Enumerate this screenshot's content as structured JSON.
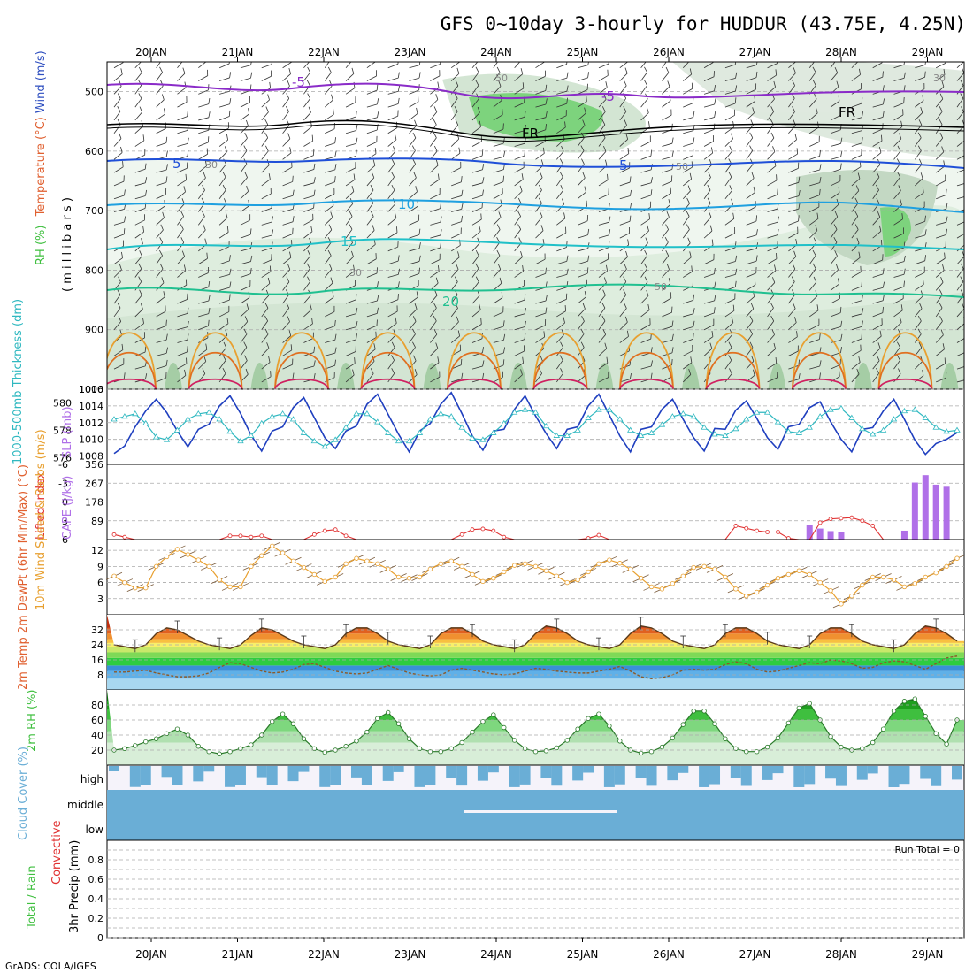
{
  "title": "GFS 0~10day 3-hourly for HUDDUR (43.75E, 4.25N)",
  "credit": "GrADS: COLA/IGES",
  "run_total": "Run Total = 0",
  "dates": [
    "20JAN",
    "21JAN",
    "22JAN",
    "23JAN",
    "24JAN",
    "25JAN",
    "26JAN",
    "27JAN",
    "28JAN",
    "29JAN"
  ],
  "colors": {
    "temp_contour": "#7030a0",
    "freezing": "#000000",
    "rh_green": "#3fbf3f",
    "slp": "#1f3fbf",
    "thickness": "#2fb8c0",
    "lifted_index": "#e03030",
    "cape": "#b070e8",
    "wind_speed": "#e8a030",
    "cloud": "#6aaed6",
    "dewpoint": "#8b5a2b"
  },
  "chart_data": [
    {
      "type": "heatmap",
      "panel": "upper-air",
      "ylabel_parts": [
        "RH (%)",
        "Temperature (°C)",
        "Wind (m/s)"
      ],
      "ylabel2": "( m i l l i b a r s )",
      "yticks": [
        500,
        600,
        700,
        800,
        900,
        1000
      ],
      "ylim": [
        1000,
        450
      ],
      "contours": [
        {
          "label": "-5",
          "pressure": 500
        },
        {
          "label": "FR",
          "pressure": 565
        },
        {
          "label": "5",
          "pressure": 620
        },
        {
          "label": "10",
          "pressure": 690
        },
        {
          "label": "15",
          "pressure": 765
        },
        {
          "label": "20",
          "pressure": 830
        }
      ],
      "rh_labels": [
        "30",
        "50"
      ]
    },
    {
      "type": "line",
      "panel": "thickness-slp",
      "ylabel_left": "1000-500mb Thickness (dm)",
      "ylabel_right": "SLP (mb)",
      "yticks_left": [
        576,
        578,
        580
      ],
      "yticks_right": [
        1008,
        1010,
        1012,
        1014,
        1016
      ],
      "series": [
        {
          "name": "SLP",
          "values": [
            1008.3,
            1009.2,
            1011.5,
            1013.4,
            1014.8,
            1013.2,
            1011.0,
            1009.1,
            1011.2,
            1011.8,
            1014.0,
            1015.2,
            1013.1,
            1010.5,
            1008.6,
            1011.0,
            1011.5,
            1013.8,
            1015.0,
            1012.6,
            1010.2,
            1008.9,
            1011.0,
            1011.6,
            1014.2,
            1015.4,
            1013.0,
            1010.6,
            1008.5,
            1011.0,
            1011.9,
            1014.2,
            1015.6,
            1013.1,
            1010.4,
            1008.7,
            1011.0,
            1011.2,
            1013.6,
            1015.2,
            1012.8,
            1010.7,
            1008.9,
            1011.2,
            1011.5,
            1014.0,
            1015.4,
            1012.9,
            1010.4,
            1008.5,
            1011.2,
            1011.5,
            1013.6,
            1014.8,
            1012.4,
            1010.2,
            1008.6,
            1011.3,
            1011.2,
            1013.5,
            1014.6,
            1012.5,
            1010.2,
            1008.8,
            1011.5,
            1011.8,
            1013.8,
            1014.5,
            1012.1,
            1010.0,
            1008.5,
            1011.2,
            1011.4,
            1013.4,
            1014.8,
            1012.4,
            1009.9,
            1008.2,
            1009.5,
            1010.0,
            1010.8
          ]
        },
        {
          "name": "Thickness",
          "values": [
            578.8,
            579.0,
            579.2,
            578.5,
            577.5,
            577.3,
            578.0,
            578.8,
            579.2,
            579.3,
            578.8,
            577.9,
            577.2,
            577.6,
            578.5,
            579.0,
            579.2,
            578.8,
            577.8,
            577.2,
            576.8,
            577.3,
            578.2,
            579.2,
            579.2,
            578.6,
            577.8,
            577.2,
            577.2,
            577.8,
            578.8,
            579.2,
            579.0,
            578.2,
            577.4,
            577.3,
            577.8,
            578.5,
            579.3,
            579.5,
            579.3,
            578.3,
            577.6,
            577.6,
            578.0,
            578.9,
            579.5,
            579.5,
            578.8,
            578.0,
            577.6,
            577.8,
            578.4,
            579.0,
            579.2,
            579.0,
            578.2,
            577.7,
            577.6,
            578.1,
            578.8,
            579.3,
            579.3,
            578.6,
            577.9,
            577.8,
            578.2,
            579.0,
            579.5,
            579.6,
            578.9,
            578.1,
            577.7,
            578.0,
            578.8,
            579.4,
            579.5,
            578.9,
            578.2,
            577.9,
            578.0
          ]
        }
      ]
    },
    {
      "type": "bar",
      "panel": "cape-li",
      "ylabel_left": "Lifted Index",
      "ylabel_right": "CAPE (J/kg)",
      "yticks_left": [
        -6,
        -3,
        0,
        3,
        6
      ],
      "yticks_right": [
        89,
        178,
        267,
        356
      ],
      "series": [
        {
          "name": "CAPE",
          "values": [
            0,
            0,
            0,
            0,
            0,
            0,
            0,
            0,
            0,
            0,
            0,
            0,
            0,
            0,
            0,
            0,
            0,
            0,
            0,
            0,
            0,
            0,
            0,
            0,
            0,
            0,
            0,
            0,
            0,
            0,
            0,
            0,
            0,
            0,
            0,
            0,
            0,
            0,
            0,
            0,
            0,
            0,
            0,
            0,
            0,
            0,
            0,
            0,
            0,
            0,
            0,
            0,
            0,
            0,
            0,
            0,
            0,
            0,
            0,
            0,
            0,
            0,
            0,
            0,
            0,
            0,
            68,
            52,
            40,
            35,
            0,
            0,
            0,
            0,
            0,
            42,
            270,
            305,
            260,
            250,
            0
          ]
        },
        {
          "name": "Lifted Index",
          "values": [
            5.2,
            5.6,
            6,
            6,
            6,
            6,
            6,
            6,
            6,
            6,
            6,
            5.4,
            5.4,
            5.6,
            5.4,
            6,
            6,
            6,
            6,
            5.2,
            4.6,
            4.4,
            5.4,
            6,
            6,
            6,
            6,
            6,
            6,
            6,
            6,
            6,
            6,
            5.2,
            4.4,
            4.3,
            4.6,
            5.6,
            6,
            6,
            6,
            6,
            6,
            6,
            6,
            5.8,
            5.3,
            6,
            6,
            6,
            6,
            6,
            6,
            6,
            6,
            6,
            6,
            6,
            6,
            3.8,
            4.2,
            4.6,
            4.8,
            4.8,
            5.8,
            6,
            6,
            3.3,
            2.7,
            2.6,
            2.5,
            3.0,
            3.8,
            6,
            6,
            6,
            6,
            6,
            6,
            6,
            6
          ]
        }
      ]
    },
    {
      "type": "line",
      "panel": "wind10m",
      "ylabel": "10m Wind Speed & Barbs (m/s)",
      "yticks": [
        3,
        6,
        9,
        12
      ],
      "series": [
        {
          "name": "Speed",
          "values": [
            7.2,
            6.0,
            5.0,
            5.0,
            9.0,
            10.8,
            12.2,
            11.2,
            10.2,
            9.0,
            6.5,
            5.2,
            5.2,
            9.0,
            11.0,
            12.8,
            11.5,
            10.0,
            8.8,
            7.5,
            6.2,
            7.0,
            9.5,
            10.5,
            10.0,
            9.5,
            8.5,
            7.0,
            6.8,
            7.0,
            8.5,
            9.5,
            10.0,
            9.0,
            7.5,
            6.2,
            6.8,
            8.0,
            9.2,
            9.5,
            9.0,
            8.2,
            7.2,
            6.0,
            6.5,
            8.0,
            9.5,
            10.2,
            9.6,
            8.5,
            6.8,
            5.2,
            4.8,
            5.8,
            7.2,
            8.8,
            9.0,
            8.5,
            7.0,
            4.8,
            3.5,
            4.2,
            5.5,
            6.8,
            7.5,
            8.2,
            7.5,
            6.0,
            4.5,
            2.0,
            3.5,
            5.5,
            7.0,
            7.0,
            6.5,
            5.2,
            5.8,
            7.0,
            7.8,
            9.0,
            10.5
          ]
        }
      ]
    },
    {
      "type": "area",
      "panel": "temp2m",
      "ylabel": "2m Temp 2m DewPt (6hr Min/Max) (°C)",
      "yticks": [
        8,
        16,
        24,
        32
      ],
      "series": [
        {
          "name": "2m Temp",
          "values": [
            24,
            23,
            22,
            24,
            30,
            33,
            32,
            29,
            26,
            24,
            23,
            22,
            24,
            29,
            33,
            32,
            29,
            26,
            24,
            23,
            22,
            24,
            30,
            33,
            33,
            30,
            26,
            24,
            23,
            22,
            24,
            30,
            33,
            33,
            30,
            26,
            24,
            23,
            22,
            24,
            30,
            34,
            33,
            30,
            26,
            24,
            23,
            22,
            24,
            30,
            34,
            33,
            30,
            26,
            24,
            23,
            22,
            24,
            30,
            33,
            33,
            30,
            26,
            24,
            23,
            22,
            24,
            30,
            33,
            33,
            30,
            26,
            24,
            23,
            22,
            24,
            30,
            34,
            33,
            30,
            26
          ]
        },
        {
          "name": "2m DewPt",
          "values": [
            9.5,
            9.5,
            10.0,
            10.5,
            9.0,
            8.0,
            7.0,
            7.0,
            7.5,
            9.0,
            12.0,
            14.5,
            14.0,
            12.0,
            10.0,
            9.0,
            9.5,
            11.0,
            13.5,
            14.0,
            12.0,
            10.0,
            9.0,
            8.5,
            9.0,
            11.0,
            13.0,
            11.0,
            9.0,
            8.0,
            7.5,
            8.0,
            10.5,
            11.5,
            10.5,
            9.5,
            8.5,
            8.0,
            8.5,
            10.0,
            11.5,
            11.0,
            10.0,
            9.5,
            9.0,
            9.0,
            10.0,
            11.0,
            12.5,
            10.0,
            7.0,
            6.0,
            6.5,
            8.0,
            10.5,
            11.0,
            10.5,
            11.0,
            13.5,
            15.0,
            14.0,
            11.0,
            9.5,
            10.0,
            11.5,
            13.0,
            14.5,
            14.0,
            16.0,
            15.5,
            14.0,
            11.5,
            12.0,
            14.5,
            15.5,
            15.0,
            13.0,
            11.0,
            14.0,
            17.0,
            18.0
          ]
        }
      ]
    },
    {
      "type": "area",
      "panel": "rh2m",
      "ylabel": "2m RH (%)",
      "yticks": [
        20,
        40,
        60,
        80
      ],
      "series": [
        {
          "name": "2m RH",
          "values": [
            20,
            22,
            26,
            31,
            35,
            42,
            48,
            40,
            25,
            18,
            15,
            18,
            22,
            27,
            40,
            58,
            68,
            55,
            35,
            22,
            17,
            20,
            25,
            32,
            44,
            62,
            70,
            55,
            35,
            22,
            18,
            18,
            22,
            30,
            44,
            58,
            67,
            50,
            33,
            22,
            18,
            19,
            23,
            33,
            48,
            62,
            68,
            52,
            32,
            20,
            16,
            18,
            24,
            36,
            54,
            72,
            72,
            55,
            35,
            22,
            18,
            18,
            24,
            36,
            56,
            76,
            82,
            60,
            38,
            24,
            20,
            22,
            30,
            48,
            72,
            85,
            88,
            65,
            42,
            28,
            60
          ]
        }
      ]
    },
    {
      "type": "bar",
      "panel": "cloud",
      "ylabel": "Cloud Cover (%)",
      "yticks": [
        "high",
        "middle",
        "low"
      ]
    },
    {
      "type": "bar",
      "panel": "precip",
      "ylabel_parts": [
        "Total / Rain",
        "Convective"
      ],
      "ylabel2": "3hr Precip (mm)",
      "yticks": [
        0,
        0.2,
        0.4,
        0.6,
        0.8
      ],
      "ylim": [
        0,
        1
      ]
    }
  ]
}
